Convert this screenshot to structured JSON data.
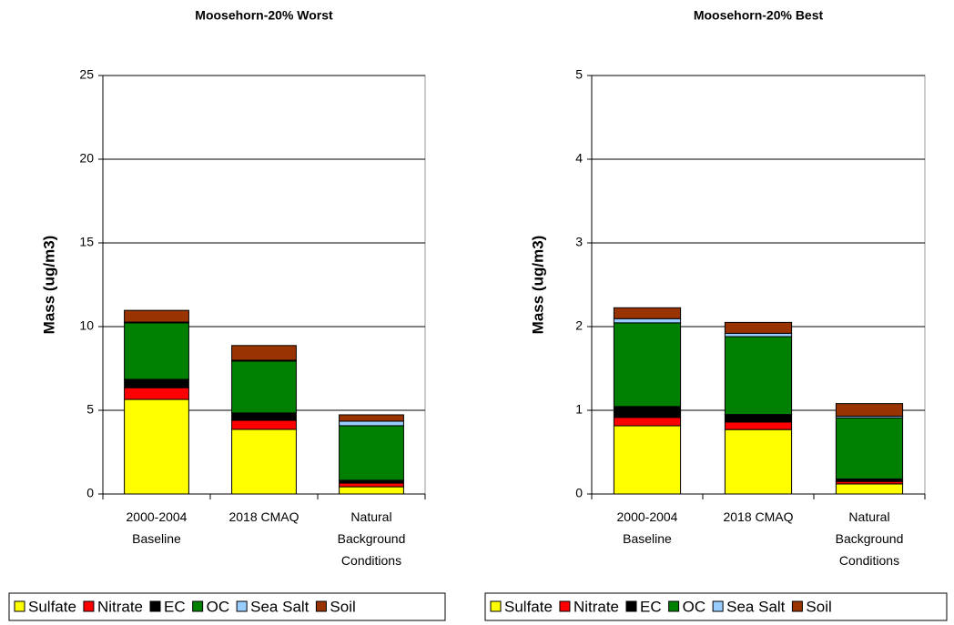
{
  "chart_data": [
    {
      "type": "bar",
      "stacked": true,
      "title": "Moosehorn-20% Worst",
      "y_label": "Mass (ug/m3)",
      "categories": [
        "2000-2004 Baseline",
        "2018 CMAQ",
        "Natural Background Conditions"
      ],
      "series": [
        {
          "name": "Sulfate",
          "color": "#ffff00",
          "values": [
            5.65,
            3.86,
            0.43
          ]
        },
        {
          "name": "Nitrate",
          "color": "#ff0000",
          "values": [
            0.7,
            0.54,
            0.22
          ]
        },
        {
          "name": "EC",
          "color": "#000000",
          "values": [
            0.5,
            0.44,
            0.17
          ]
        },
        {
          "name": "OC",
          "color": "#008000",
          "values": [
            3.37,
            3.1,
            3.26
          ]
        },
        {
          "name": "Sea Salt",
          "color": "#99ccff",
          "values": [
            0.05,
            0.05,
            0.27
          ]
        },
        {
          "name": "Soil",
          "color": "#993300",
          "values": [
            0.7,
            0.88,
            0.38
          ]
        }
      ],
      "ylim": [
        0,
        25
      ],
      "yticks": [
        0,
        5,
        10,
        15,
        20,
        25
      ],
      "grid": true,
      "legend": "bottom"
    },
    {
      "type": "bar",
      "stacked": true,
      "title": "Moosehorn-20% Best",
      "y_label": "Mass (ug/m3)",
      "categories": [
        "2000-2004 Baseline",
        "2018 CMAQ",
        "Natural Background Conditions"
      ],
      "series": [
        {
          "name": "Sulfate",
          "color": "#ffff00",
          "values": [
            0.815,
            0.77,
            0.12
          ]
        },
        {
          "name": "Nitrate",
          "color": "#ff0000",
          "values": [
            0.1,
            0.09,
            0.03
          ]
        },
        {
          "name": "EC",
          "color": "#000000",
          "values": [
            0.13,
            0.09,
            0.03
          ]
        },
        {
          "name": "OC",
          "color": "#008000",
          "values": [
            1.0,
            0.93,
            0.73
          ]
        },
        {
          "name": "Sea Salt",
          "color": "#99ccff",
          "values": [
            0.05,
            0.04,
            0.02
          ]
        },
        {
          "name": "Soil",
          "color": "#993300",
          "values": [
            0.13,
            0.13,
            0.15
          ]
        }
      ],
      "ylim": [
        0,
        5
      ],
      "yticks": [
        0,
        1,
        2,
        3,
        4,
        5
      ],
      "grid": true,
      "legend": "bottom"
    }
  ]
}
